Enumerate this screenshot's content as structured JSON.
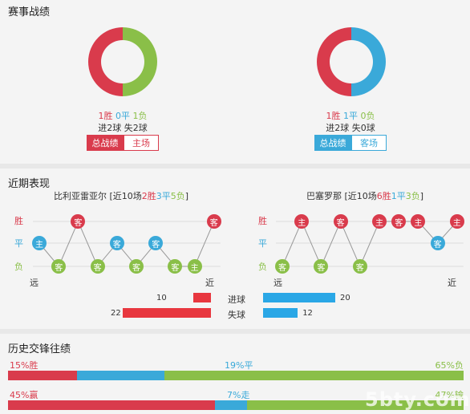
{
  "colors": {
    "win": "#d93b4c",
    "draw": "#3aa9d9",
    "loss": "#8abf48",
    "bar": "#e8373f",
    "bar_blue": "#2aa7e6"
  },
  "record": {
    "title": "赛事战绩",
    "left": {
      "win": "1胜",
      "draw": "0平",
      "loss": "1负",
      "goals": "进2球 失2球",
      "tab_active": "总战绩",
      "tab_other": "主场",
      "win_share": 0.5,
      "draw_share": 0,
      "loss_share": 0.5
    },
    "right": {
      "win": "1胜",
      "draw": "1平",
      "loss": "0负",
      "goals": "进2球 失0球",
      "tab_active": "总战绩",
      "tab_other": "客场",
      "win_share": 0.5,
      "draw_share": 0.5,
      "loss_share": 0
    }
  },
  "recent": {
    "title": "近期表现",
    "left": {
      "team": "比利亚雷亚尔",
      "prefix": " [近10场",
      "w": "2胜",
      "d": "3平",
      "l": "5负",
      "suffix": "]",
      "far": "远",
      "near": "近",
      "games": [
        {
          "r": "d",
          "v": "主"
        },
        {
          "r": "l",
          "v": "客"
        },
        {
          "r": "w",
          "v": "客"
        },
        {
          "r": "l",
          "v": "客"
        },
        {
          "r": "d",
          "v": "客"
        },
        {
          "r": "l",
          "v": "客"
        },
        {
          "r": "d",
          "v": "客"
        },
        {
          "r": "l",
          "v": "客"
        },
        {
          "r": "l",
          "v": "主"
        },
        {
          "r": "w",
          "v": "客"
        }
      ]
    },
    "right": {
      "team": "巴塞罗那",
      "prefix": " [近10场",
      "w": "6胜",
      "d": "1平",
      "l": "3负",
      "suffix": "]",
      "far": "远",
      "near": "近",
      "games": [
        {
          "r": "l",
          "v": "客"
        },
        {
          "r": "w",
          "v": "主"
        },
        {
          "r": "l",
          "v": "客"
        },
        {
          "r": "w",
          "v": "客"
        },
        {
          "r": "l",
          "v": "客"
        },
        {
          "r": "w",
          "v": "主"
        },
        {
          "r": "w",
          "v": "客"
        },
        {
          "r": "w",
          "v": "主"
        },
        {
          "r": "d",
          "v": "客"
        },
        {
          "r": "w",
          "v": "主"
        }
      ]
    },
    "y_win": "胜",
    "y_draw": "平",
    "y_loss": "负",
    "goals_for_label": "进球",
    "goals_against_label": "失球",
    "left_for": 10,
    "left_against": 22,
    "right_for": 20,
    "right_against": 12,
    "scale_max": 22
  },
  "history": {
    "title": "历史交锋往绩",
    "row1": {
      "left": "15%胜",
      "mid": "19%平",
      "right": "65%负",
      "a": 15,
      "b": 19,
      "c": 65
    },
    "row2": {
      "left": "45%赢",
      "mid": "7%走",
      "right": "47%输",
      "a": 45,
      "b": 7,
      "c": 47
    }
  },
  "watermark": "5bty.com"
}
